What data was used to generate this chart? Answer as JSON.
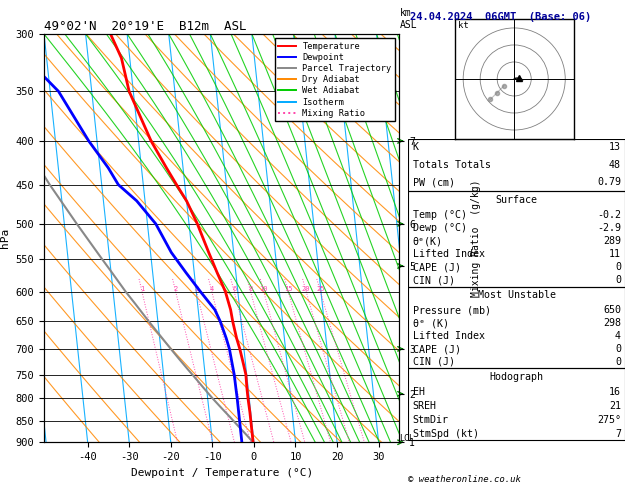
{
  "title_left": "49°02'N  20°19'E  B12m  ASL",
  "title_right": "24.04.2024  06GMT  (Base: 06)",
  "xlabel": "Dewpoint / Temperature (°C)",
  "ylabel_left": "hPa",
  "pressure_levels": [
    300,
    350,
    400,
    450,
    500,
    550,
    600,
    650,
    700,
    750,
    800,
    850,
    900
  ],
  "temp_ticks": [
    -40,
    -30,
    -20,
    -10,
    0,
    10,
    20,
    30
  ],
  "p_min": 300,
  "p_max": 900,
  "t_min": -40,
  "t_max": 35,
  "skew_factor": 22,
  "isotherm_color": "#00aaff",
  "dry_adiabat_color": "#ff8800",
  "wet_adiabat_color": "#00cc00",
  "mixing_ratio_color": "#ff44aa",
  "temp_profile_color": "#ff0000",
  "dewp_profile_color": "#0000ff",
  "parcel_color": "#888888",
  "legend_items": [
    {
      "label": "Temperature",
      "color": "#ff0000",
      "linestyle": "-"
    },
    {
      "label": "Dewpoint",
      "color": "#0000ff",
      "linestyle": "-"
    },
    {
      "label": "Parcel Trajectory",
      "color": "#888888",
      "linestyle": "-"
    },
    {
      "label": "Dry Adiabat",
      "color": "#ff8800",
      "linestyle": "-"
    },
    {
      "label": "Wet Adiabat",
      "color": "#00cc00",
      "linestyle": "-"
    },
    {
      "label": "Isotherm",
      "color": "#00aaff",
      "linestyle": "-"
    },
    {
      "label": "Mixing Ratio",
      "color": "#ff44aa",
      "linestyle": ":"
    }
  ],
  "sounding_temp_p": [
    300,
    320,
    350,
    400,
    430,
    450,
    470,
    500,
    540,
    570,
    600,
    630,
    650,
    680,
    700,
    730,
    750,
    780,
    800,
    830,
    850,
    870,
    900
  ],
  "sounding_temp_t": [
    -24,
    -22,
    -21,
    -17,
    -14,
    -12,
    -10,
    -8,
    -6,
    -4.5,
    -3,
    -2.2,
    -2,
    -1.5,
    -1,
    -0.5,
    -0.2,
    -0.3,
    -0.3,
    -0.2,
    -0.2,
    -0.2,
    -0.2
  ],
  "sounding_dewp_p": [
    300,
    320,
    350,
    400,
    430,
    450,
    470,
    500,
    540,
    570,
    600,
    630,
    650,
    680,
    700,
    730,
    750,
    780,
    800,
    830,
    850,
    870,
    900
  ],
  "sounding_dewp_t": [
    -50,
    -45,
    -38,
    -32,
    -28,
    -26,
    -22,
    -18,
    -15,
    -12,
    -9,
    -6,
    -5,
    -4,
    -3.5,
    -3.2,
    -3.0,
    -2.95,
    -2.9,
    -2.9,
    -2.9,
    -2.9,
    -2.9
  ],
  "parcel_p": [
    900,
    880,
    860,
    840,
    820,
    800,
    780,
    760,
    740,
    720,
    700,
    680,
    650,
    620,
    600,
    570,
    550,
    500,
    450,
    400,
    350,
    300
  ],
  "parcel_t": [
    -0.2,
    -1.8,
    -3.5,
    -5.2,
    -7.0,
    -8.8,
    -10.5,
    -12.2,
    -14.0,
    -15.8,
    -17.6,
    -19.4,
    -22.2,
    -25.0,
    -27.0,
    -29.8,
    -31.8,
    -37.0,
    -42.5,
    -48.0,
    -54.0,
    -60.0
  ],
  "mixing_ratio_lines": [
    1,
    2,
    3,
    4,
    6,
    8,
    10,
    15,
    20,
    25
  ],
  "km_ticks_p": [
    400,
    500,
    560,
    700,
    790,
    900
  ],
  "km_ticks_label": [
    "7",
    "6",
    "5",
    "3",
    "2",
    "1"
  ],
  "lcl_pressure": 890,
  "stats": {
    "K": 13,
    "Totals_Totals": 48,
    "PW_cm": 0.79,
    "Surf_Temp": -0.2,
    "Surf_Dewp": -2.9,
    "Surf_ThetaE": 289,
    "Surf_LI": 11,
    "Surf_CAPE": 0,
    "Surf_CIN": 0,
    "MU_Pressure": 650,
    "MU_ThetaE": 298,
    "MU_LI": 4,
    "MU_CAPE": 0,
    "MU_CIN": 0,
    "EH": 16,
    "SREH": 21,
    "StmDir": 275,
    "StmSpd": 7
  }
}
